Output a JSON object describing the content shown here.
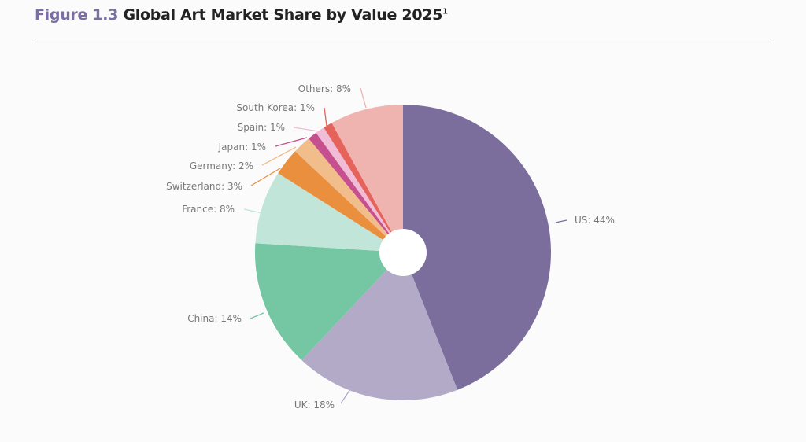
{
  "chart_data": {
    "type": "pie",
    "title_prefix": "Figure 1.3",
    "title": "Global Art Market Share by Value 2025",
    "footnote_mark": "1",
    "donut_hole": true,
    "start": "12 o'clock, clockwise",
    "slices": [
      {
        "label": "US",
        "value": 44,
        "text": "US: 44%",
        "color": "#7b6e9c"
      },
      {
        "label": "UK",
        "value": 18,
        "text": "UK: 18%",
        "color": "#b3aac8"
      },
      {
        "label": "China",
        "value": 14,
        "text": "China: 14%",
        "color": "#75c6a2"
      },
      {
        "label": "France",
        "value": 8,
        "text": "France: 8%",
        "color": "#c1e5d8"
      },
      {
        "label": "Switzerland",
        "value": 3,
        "text": "Switzerland: 3%",
        "color": "#ea8f3e"
      },
      {
        "label": "Germany",
        "value": 2,
        "text": "Germany: 2%",
        "color": "#f1bd8b"
      },
      {
        "label": "Japan",
        "value": 1,
        "text": "Japan: 1%",
        "color": "#c64f8d"
      },
      {
        "label": "Spain",
        "value": 1,
        "text": "Spain: 1%",
        "color": "#f0bcd6"
      },
      {
        "label": "South Korea",
        "value": 1,
        "text": "South Korea: 1%",
        "color": "#e5635a"
      },
      {
        "label": "Others",
        "value": 8,
        "text": "Others: 8%",
        "color": "#efb4b0"
      }
    ]
  }
}
